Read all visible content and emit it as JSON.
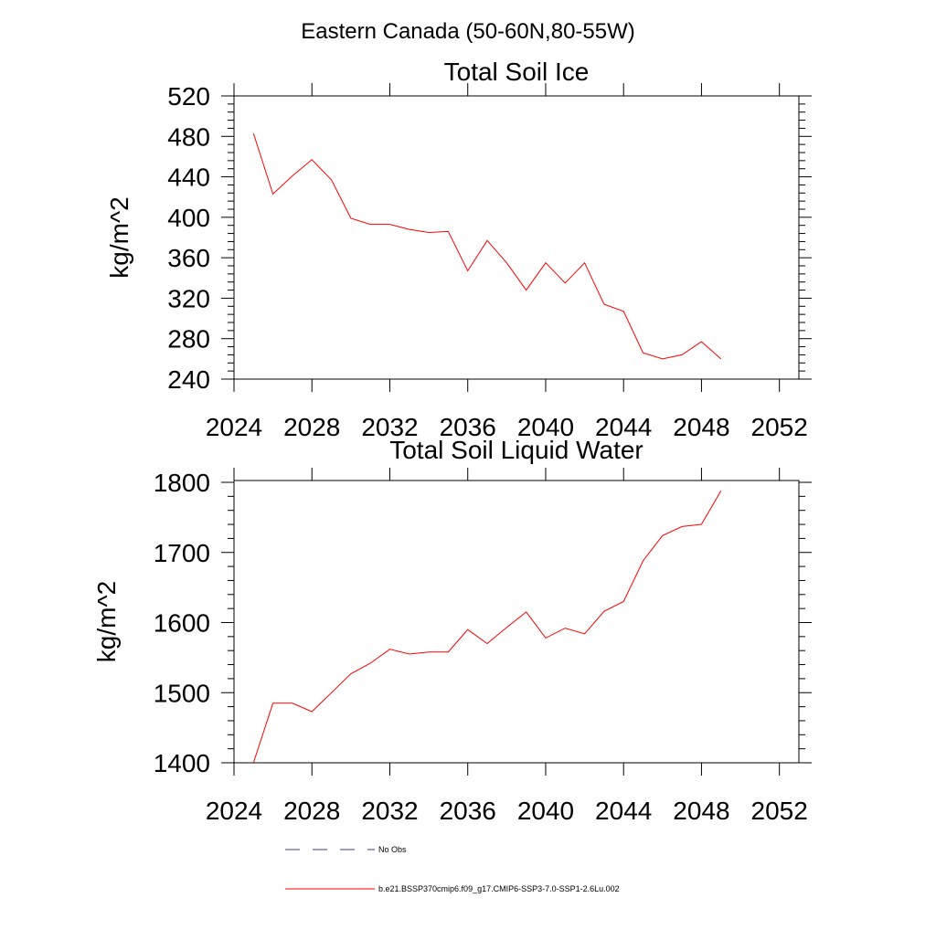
{
  "figure_title": "Eastern Canada (50-60N,80-55W)",
  "legend": [
    {
      "label": "No Obs",
      "color": "#3a3a8c",
      "style": "dashed"
    },
    {
      "label": "b.e21.BSSP370cmip6.f09_g17.CMIP6-SSP3-7.0-SSP1-2.6Lu.002",
      "color": "#ff0000",
      "style": "solid"
    }
  ],
  "chart_data": [
    {
      "type": "line",
      "title": "Total Soil Ice",
      "ylabel": "kg/m^2",
      "xlabel": "",
      "xlim": [
        2024,
        2053
      ],
      "ylim": [
        240,
        520
      ],
      "xticks": [
        2024,
        2028,
        2032,
        2036,
        2040,
        2044,
        2048,
        2052
      ],
      "yticks": [
        240,
        280,
        320,
        360,
        400,
        440,
        480,
        520
      ],
      "ytick_labels": [
        "240",
        "280",
        "320",
        "360",
        "400",
        "440",
        "480",
        "520"
      ],
      "x": [
        2025,
        2026,
        2027,
        2028,
        2029,
        2030,
        2031,
        2032,
        2033,
        2034,
        2035,
        2036,
        2037,
        2038,
        2039,
        2040,
        2041,
        2042,
        2043,
        2044,
        2045,
        2046,
        2047,
        2048,
        2049
      ],
      "series": [
        {
          "color": "#ff0000",
          "values": [
            483,
            423,
            441,
            457,
            437,
            399,
            393,
            393,
            388,
            385,
            386,
            347,
            377,
            355,
            328,
            355,
            335,
            355,
            314,
            307,
            266,
            260,
            264,
            277,
            260
          ]
        }
      ]
    },
    {
      "type": "line",
      "title": "Total Soil Liquid Water",
      "ylabel": "kg/m^2",
      "xlabel": "",
      "xlim": [
        2024,
        2053
      ],
      "ylim": [
        1400,
        1820
      ],
      "xticks": [
        2024,
        2028,
        2032,
        2036,
        2040,
        2044,
        2048,
        2052
      ],
      "yticks": [
        1400,
        1500,
        1600,
        1700,
        1800
      ],
      "ytick_labels": [
        "1400",
        "1500",
        "1600",
        "1700",
        "1800"
      ],
      "x": [
        2025,
        2026,
        2027,
        2028,
        2029,
        2030,
        2031,
        2032,
        2033,
        2034,
        2035,
        2036,
        2037,
        2038,
        2039,
        2040,
        2041,
        2042,
        2043,
        2044,
        2045,
        2046,
        2047,
        2048,
        2049
      ],
      "series": [
        {
          "color": "#ff0000",
          "values": [
            1400,
            1485,
            1485,
            1473,
            1500,
            1527,
            1542,
            1562,
            1555,
            1558,
            1558,
            1590,
            1570,
            1593,
            1615,
            1578,
            1592,
            1584,
            1616,
            1630,
            1688,
            1724,
            1737,
            1740,
            1788
          ]
        }
      ]
    }
  ]
}
